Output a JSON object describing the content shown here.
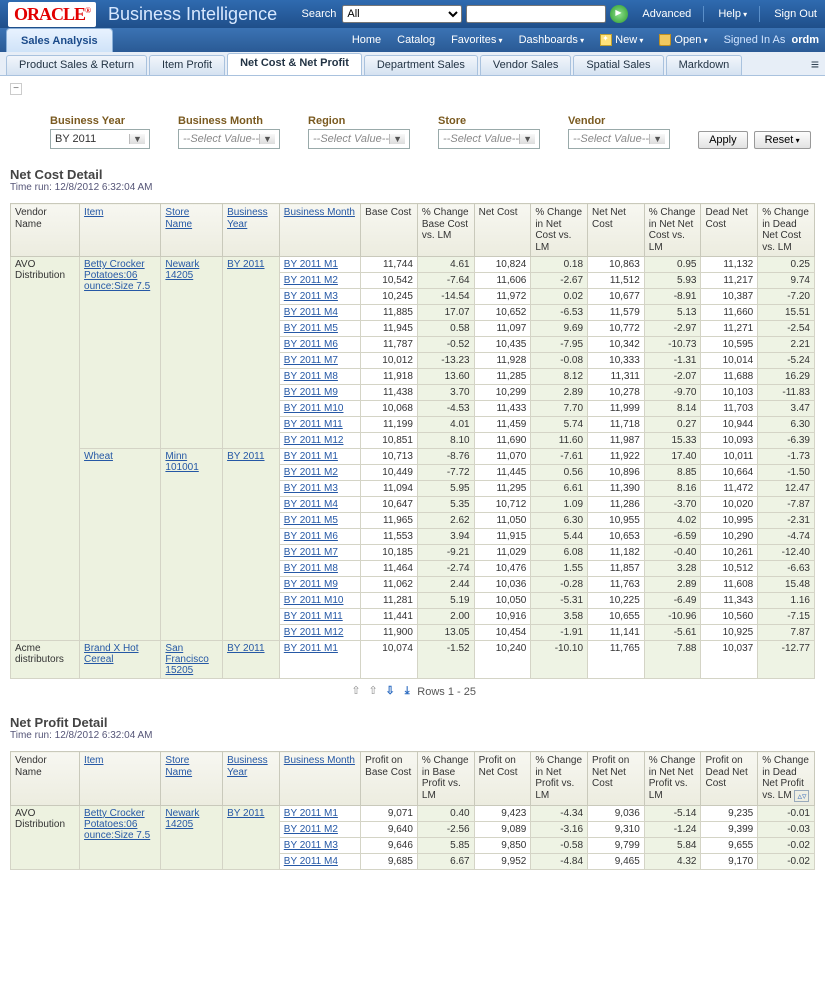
{
  "header": {
    "logo_text": "ORACLE",
    "app_title": "Business Intelligence",
    "search_label": "Search",
    "search_scope": "All",
    "advanced": "Advanced",
    "help": "Help",
    "sign_out": "Sign Out"
  },
  "menubar": {
    "dashboard_tab": "Sales Analysis",
    "home": "Home",
    "catalog": "Catalog",
    "favorites": "Favorites",
    "dashboards": "Dashboards",
    "new": "New",
    "open": "Open",
    "signed_prefix": "Signed In As",
    "signed_user": "ordm"
  },
  "subtabs": {
    "t1": "Product Sales & Return",
    "t2": "Item Profit",
    "t3": "Net Cost & Net Profit",
    "t4": "Department Sales",
    "t5": "Vendor Sales",
    "t6": "Spatial Sales",
    "t7": "Markdown"
  },
  "filters": {
    "year_lbl": "Business Year",
    "year_val": "BY 2011",
    "month_lbl": "Business Month",
    "month_ph": "--Select Value--",
    "region_lbl": "Region",
    "region_ph": "--Select Value--",
    "store_lbl": "Store",
    "store_ph": "--Select Value--",
    "vendor_lbl": "Vendor",
    "vendor_ph": "--Select Value--",
    "apply": "Apply",
    "reset": "Reset"
  },
  "cost_section": {
    "title": "Net Cost Detail",
    "runtime": "Time run: 12/8/2012 6:32:04 AM",
    "cols": {
      "vendor": "Vendor Name",
      "item": "Item",
      "store": "Store Name",
      "year": "Business Year",
      "month": "Business Month",
      "c1": "Base Cost",
      "c2": "% Change Base Cost vs. LM",
      "c3": "Net Cost",
      "c4": "% Change in Net Cost vs. LM",
      "c5": "Net Net Cost",
      "c6": "% Change in Net Net Cost vs. LM",
      "c7": "Dead Net Cost",
      "c8": "% Change in Dead Net Cost vs. LM"
    },
    "groups": [
      {
        "vendor": "AVO Distribution",
        "items": [
          {
            "item": "Betty Crocker Potatoes:06 ounce:Size 7.5",
            "store": "Newark 14205",
            "year": "BY 2011",
            "rows": [
              {
                "m": "BY 2011 M1",
                "v": [
                  "11,744",
                  "4.61",
                  "10,824",
                  "0.18",
                  "10,863",
                  "0.95",
                  "11,132",
                  "0.25"
                ]
              },
              {
                "m": "BY 2011 M2",
                "v": [
                  "10,542",
                  "-7.64",
                  "11,606",
                  "-2.67",
                  "11,512",
                  "5.93",
                  "11,217",
                  "9.74"
                ]
              },
              {
                "m": "BY 2011 M3",
                "v": [
                  "10,245",
                  "-14.54",
                  "11,972",
                  "0.02",
                  "10,677",
                  "-8.91",
                  "10,387",
                  "-7.20"
                ]
              },
              {
                "m": "BY 2011 M4",
                "v": [
                  "11,885",
                  "17.07",
                  "10,652",
                  "-6.53",
                  "11,579",
                  "5.13",
                  "11,660",
                  "15.51"
                ]
              },
              {
                "m": "BY 2011 M5",
                "v": [
                  "11,945",
                  "0.58",
                  "11,097",
                  "9.69",
                  "10,772",
                  "-2.97",
                  "11,271",
                  "-2.54"
                ]
              },
              {
                "m": "BY 2011 M6",
                "v": [
                  "11,787",
                  "-0.52",
                  "10,435",
                  "-7.95",
                  "10,342",
                  "-10.73",
                  "10,595",
                  "2.21"
                ]
              },
              {
                "m": "BY 2011 M7",
                "v": [
                  "10,012",
                  "-13.23",
                  "11,928",
                  "-0.08",
                  "10,333",
                  "-1.31",
                  "10,014",
                  "-5.24"
                ]
              },
              {
                "m": "BY 2011 M8",
                "v": [
                  "11,918",
                  "13.60",
                  "11,285",
                  "8.12",
                  "11,311",
                  "-2.07",
                  "11,688",
                  "16.29"
                ]
              },
              {
                "m": "BY 2011 M9",
                "v": [
                  "11,438",
                  "3.70",
                  "10,299",
                  "2.89",
                  "10,278",
                  "-9.70",
                  "10,103",
                  "-11.83"
                ]
              },
              {
                "m": "BY 2011 M10",
                "v": [
                  "10,068",
                  "-4.53",
                  "11,433",
                  "7.70",
                  "11,999",
                  "8.14",
                  "11,703",
                  "3.47"
                ]
              },
              {
                "m": "BY 2011 M11",
                "v": [
                  "11,199",
                  "4.01",
                  "11,459",
                  "5.74",
                  "11,718",
                  "0.27",
                  "10,944",
                  "6.30"
                ]
              },
              {
                "m": "BY 2011 M12",
                "v": [
                  "10,851",
                  "8.10",
                  "11,690",
                  "11.60",
                  "11,987",
                  "15.33",
                  "10,093",
                  "-6.39"
                ]
              }
            ]
          },
          {
            "item": "Wheat",
            "store": "Minn 101001",
            "year": "BY 2011",
            "rows": [
              {
                "m": "BY 2011 M1",
                "v": [
                  "10,713",
                  "-8.76",
                  "11,070",
                  "-7.61",
                  "11,922",
                  "17.40",
                  "10,011",
                  "-1.73"
                ]
              },
              {
                "m": "BY 2011 M2",
                "v": [
                  "10,449",
                  "-7.72",
                  "11,445",
                  "0.56",
                  "10,896",
                  "8.85",
                  "10,664",
                  "-1.50"
                ]
              },
              {
                "m": "BY 2011 M3",
                "v": [
                  "11,094",
                  "5.95",
                  "11,295",
                  "6.61",
                  "11,390",
                  "8.16",
                  "11,472",
                  "12.47"
                ]
              },
              {
                "m": "BY 2011 M4",
                "v": [
                  "10,647",
                  "5.35",
                  "10,712",
                  "1.09",
                  "11,286",
                  "-3.70",
                  "10,020",
                  "-7.87"
                ]
              },
              {
                "m": "BY 2011 M5",
                "v": [
                  "11,965",
                  "2.62",
                  "11,050",
                  "6.30",
                  "10,955",
                  "4.02",
                  "10,995",
                  "-2.31"
                ]
              },
              {
                "m": "BY 2011 M6",
                "v": [
                  "11,553",
                  "3.94",
                  "11,915",
                  "5.44",
                  "10,653",
                  "-6.59",
                  "10,290",
                  "-4.74"
                ]
              },
              {
                "m": "BY 2011 M7",
                "v": [
                  "10,185",
                  "-9.21",
                  "11,029",
                  "6.08",
                  "11,182",
                  "-0.40",
                  "10,261",
                  "-12.40"
                ]
              },
              {
                "m": "BY 2011 M8",
                "v": [
                  "11,464",
                  "-2.74",
                  "10,476",
                  "1.55",
                  "11,857",
                  "3.28",
                  "10,512",
                  "-6.63"
                ]
              },
              {
                "m": "BY 2011 M9",
                "v": [
                  "11,062",
                  "2.44",
                  "10,036",
                  "-0.28",
                  "11,763",
                  "2.89",
                  "11,608",
                  "15.48"
                ]
              },
              {
                "m": "BY 2011 M10",
                "v": [
                  "11,281",
                  "5.19",
                  "10,050",
                  "-5.31",
                  "10,225",
                  "-6.49",
                  "11,343",
                  "1.16"
                ]
              },
              {
                "m": "BY 2011 M11",
                "v": [
                  "11,441",
                  "2.00",
                  "10,916",
                  "3.58",
                  "10,655",
                  "-10.96",
                  "10,560",
                  "-7.15"
                ]
              },
              {
                "m": "BY 2011 M12",
                "v": [
                  "11,900",
                  "13.05",
                  "10,454",
                  "-1.91",
                  "11,141",
                  "-5.61",
                  "10,925",
                  "7.87"
                ]
              }
            ]
          }
        ]
      },
      {
        "vendor": "Acme distributors",
        "items": [
          {
            "item": "Brand X Hot Cereal",
            "store": "San Francisco 15205",
            "year": "BY 2011",
            "rows": [
              {
                "m": "BY 2011 M1",
                "v": [
                  "10,074",
                  "-1.52",
                  "10,240",
                  "-10.10",
                  "11,765",
                  "7.88",
                  "10,037",
                  "-12.77"
                ]
              }
            ]
          }
        ]
      }
    ],
    "pager": "Rows 1 - 25"
  },
  "profit_section": {
    "title": "Net Profit Detail",
    "runtime": "Time run: 12/8/2012 6:32:04 AM",
    "cols": {
      "vendor": "Vendor Name",
      "item": "Item",
      "store": "Store Name",
      "year": "Business Year",
      "month": "Business Month",
      "c1": "Profit on Base Cost",
      "c2": "% Change in Base Profit vs. LM",
      "c3": "Profit on Net Cost",
      "c4": "% Change in Net Profit vs. LM",
      "c5": "Profit on Net Net Cost",
      "c6": "% Change in Net Net Profit vs. LM",
      "c7": "Profit on Dead Net Cost",
      "c8": "% Change in Dead Net Profit vs. LM"
    },
    "group": {
      "vendor": "AVO Distribution",
      "item": "Betty Crocker Potatoes:06 ounce:Size 7.5",
      "store": "Newark 14205",
      "year": "BY 2011",
      "rows": [
        {
          "m": "BY 2011 M1",
          "v": [
            "9,071",
            "0.40",
            "9,423",
            "-4.34",
            "9,036",
            "-5.14",
            "9,235",
            "-0.01"
          ]
        },
        {
          "m": "BY 2011 M2",
          "v": [
            "9,640",
            "-2.56",
            "9,089",
            "-3.16",
            "9,310",
            "-1.24",
            "9,399",
            "-0.03"
          ]
        },
        {
          "m": "BY 2011 M3",
          "v": [
            "9,646",
            "5.85",
            "9,850",
            "-0.58",
            "9,799",
            "5.84",
            "9,655",
            "-0.02"
          ]
        },
        {
          "m": "BY 2011 M4",
          "v": [
            "9,685",
            "6.67",
            "9,952",
            "-4.84",
            "9,465",
            "4.32",
            "9,170",
            "-0.02"
          ]
        }
      ]
    }
  }
}
